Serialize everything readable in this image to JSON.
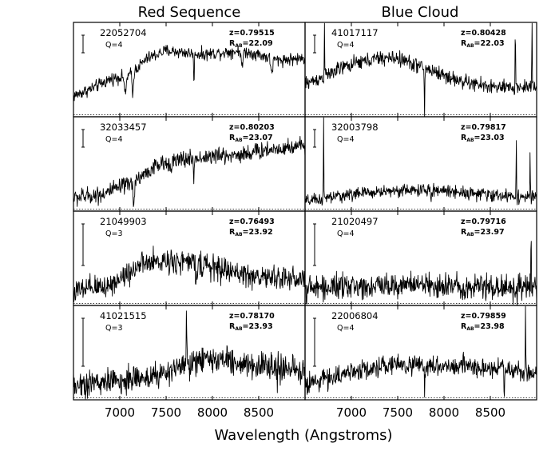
{
  "chart_data": {
    "type": "line",
    "xlabel": "Wavelength (Angstroms)",
    "xlim": [
      6500,
      9000
    ],
    "x_ticks": [
      {
        "value": 7000,
        "label": "7000"
      },
      {
        "value": 7500,
        "label": "7500"
      },
      {
        "value": 8000,
        "label": "8000"
      },
      {
        "value": 8500,
        "label": "8500"
      }
    ],
    "columns": [
      {
        "title": "Red Sequence"
      },
      {
        "title": "Blue Cloud"
      }
    ],
    "panels": [
      {
        "col": 0,
        "row": 0,
        "id": "22052704",
        "quality": "Q=4",
        "redshift": "z=0.79515",
        "r_label": "R",
        "r_sub": "AB",
        "r_value": "=22.09",
        "spectrum": {
          "noise": 0.05,
          "continuum": [
            [
              6500,
              0.22
            ],
            [
              6700,
              0.3
            ],
            [
              6900,
              0.4
            ],
            [
              7100,
              0.44
            ],
            [
              7300,
              0.62
            ],
            [
              7500,
              0.7
            ],
            [
              7700,
              0.68
            ],
            [
              7900,
              0.66
            ],
            [
              8100,
              0.68
            ],
            [
              8300,
              0.7
            ],
            [
              8500,
              0.66
            ],
            [
              8700,
              0.6
            ],
            [
              9000,
              0.62
            ]
          ],
          "features": [
            [
              7060,
              -0.22,
              12
            ],
            [
              7140,
              -0.25,
              10
            ],
            [
              7800,
              -0.35,
              5
            ],
            [
              8320,
              -0.2,
              10
            ],
            [
              8640,
              -0.15,
              15
            ]
          ]
        }
      },
      {
        "col": 1,
        "row": 0,
        "id": "41017117",
        "quality": "Q=4",
        "redshift": "z=0.80428",
        "r_label": "R",
        "r_sub": "AB",
        "r_value": "=22.03",
        "spectrum": {
          "noise": 0.06,
          "continuum": [
            [
              6500,
              0.35
            ],
            [
              6700,
              0.42
            ],
            [
              6900,
              0.52
            ],
            [
              7100,
              0.58
            ],
            [
              7300,
              0.62
            ],
            [
              7500,
              0.62
            ],
            [
              7700,
              0.55
            ],
            [
              7900,
              0.48
            ],
            [
              8100,
              0.4
            ],
            [
              8300,
              0.35
            ],
            [
              8500,
              0.32
            ],
            [
              8700,
              0.3
            ],
            [
              9000,
              0.33
            ]
          ],
          "features": [
            [
              6710,
              0.95,
              3
            ],
            [
              7790,
              -0.6,
              4
            ],
            [
              8770,
              0.85,
              3
            ],
            [
              8950,
              0.9,
              3
            ]
          ]
        }
      },
      {
        "col": 0,
        "row": 1,
        "id": "32033457",
        "quality": "Q=4",
        "redshift": "z=0.80203",
        "r_label": "R",
        "r_sub": "AB",
        "r_value": "=23.07",
        "spectrum": {
          "noise": 0.07,
          "continuum": [
            [
              6500,
              0.14
            ],
            [
              6800,
              0.18
            ],
            [
              7100,
              0.28
            ],
            [
              7400,
              0.48
            ],
            [
              7700,
              0.55
            ],
            [
              8000,
              0.58
            ],
            [
              8300,
              0.6
            ],
            [
              8600,
              0.65
            ],
            [
              9000,
              0.7
            ]
          ],
          "features": [
            [
              7150,
              -0.22,
              10
            ],
            [
              7800,
              -0.3,
              5
            ]
          ]
        }
      },
      {
        "col": 1,
        "row": 1,
        "id": "32003798",
        "quality": "Q=4",
        "redshift": "z=0.79817",
        "r_label": "R",
        "r_sub": "AB",
        "r_value": "=23.03",
        "spectrum": {
          "noise": 0.05,
          "continuum": [
            [
              6500,
              0.1
            ],
            [
              7000,
              0.18
            ],
            [
              7500,
              0.22
            ],
            [
              8000,
              0.22
            ],
            [
              8500,
              0.17
            ],
            [
              9000,
              0.14
            ]
          ],
          "features": [
            [
              6700,
              0.9,
              3
            ],
            [
              7860,
              -0.2,
              4
            ],
            [
              8780,
              0.72,
              3
            ],
            [
              8930,
              0.6,
              3
            ]
          ]
        }
      },
      {
        "col": 0,
        "row": 2,
        "id": "21049903",
        "quality": "Q=3",
        "redshift": "z=0.76493",
        "r_label": "R",
        "r_sub": "AB",
        "r_value": "=23.92",
        "spectrum": {
          "noise": 0.1,
          "continuum": [
            [
              6500,
              0.14
            ],
            [
              6900,
              0.22
            ],
            [
              7200,
              0.42
            ],
            [
              7500,
              0.48
            ],
            [
              7800,
              0.45
            ],
            [
              8100,
              0.38
            ],
            [
              8500,
              0.3
            ],
            [
              9000,
              0.28
            ]
          ],
          "features": [
            [
              7820,
              -0.35,
              4
            ]
          ]
        }
      },
      {
        "col": 1,
        "row": 2,
        "id": "21020497",
        "quality": "Q=4",
        "redshift": "z=0.79716",
        "r_label": "R",
        "r_sub": "AB",
        "r_value": "=23.97",
        "spectrum": {
          "noise": 0.1,
          "continuum": [
            [
              6500,
              0.18
            ],
            [
              7000,
              0.2
            ],
            [
              7500,
              0.22
            ],
            [
              8000,
              0.21
            ],
            [
              8500,
              0.2
            ],
            [
              9000,
              0.18
            ]
          ],
          "features": [
            [
              8790,
              -0.7,
              3
            ],
            [
              8940,
              0.75,
              3
            ]
          ]
        }
      },
      {
        "col": 0,
        "row": 3,
        "id": "41021515",
        "quality": "Q=3",
        "redshift": "z=0.78170",
        "r_label": "R",
        "r_sub": "AB",
        "r_value": "=23.93",
        "spectrum": {
          "noise": 0.11,
          "continuum": [
            [
              6500,
              0.16
            ],
            [
              7000,
              0.2
            ],
            [
              7500,
              0.28
            ],
            [
              7800,
              0.4
            ],
            [
              8100,
              0.42
            ],
            [
              8500,
              0.36
            ],
            [
              9000,
              0.3
            ]
          ],
          "features": [
            [
              7720,
              0.65,
              3
            ],
            [
              7820,
              -0.2,
              4
            ],
            [
              8700,
              -0.25,
              4
            ]
          ]
        }
      },
      {
        "col": 1,
        "row": 3,
        "id": "22006804",
        "quality": "Q=4",
        "redshift": "z=0.79859",
        "r_label": "R",
        "r_sub": "AB",
        "r_value": "=23.98",
        "spectrum": {
          "noise": 0.08,
          "continuum": [
            [
              6500,
              0.16
            ],
            [
              7000,
              0.3
            ],
            [
              7500,
              0.38
            ],
            [
              8000,
              0.36
            ],
            [
              8500,
              0.34
            ],
            [
              9000,
              0.28
            ]
          ],
          "features": [
            [
              7790,
              -0.35,
              4
            ],
            [
              8650,
              -0.35,
              4
            ],
            [
              8880,
              0.75,
              3
            ]
          ]
        }
      }
    ]
  }
}
